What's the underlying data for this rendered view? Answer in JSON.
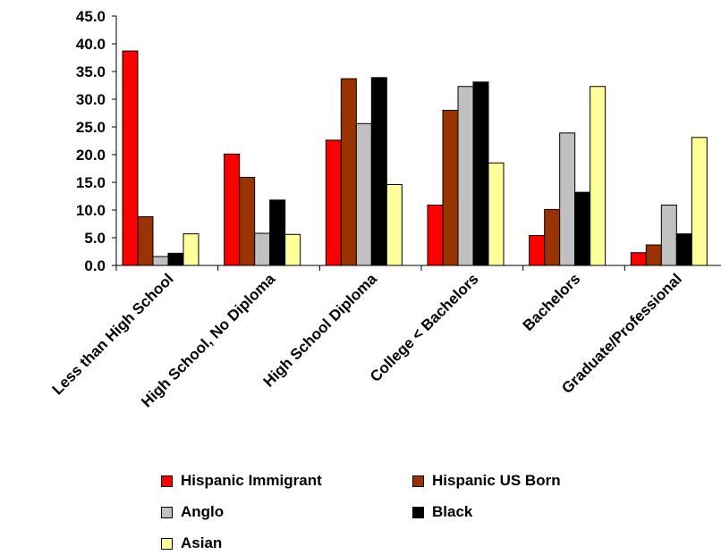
{
  "chart_data": {
    "type": "bar",
    "title": "",
    "xlabel": "",
    "ylabel": "",
    "ylim": [
      0,
      45
    ],
    "yticks": [
      "0.0",
      "5.0",
      "10.0",
      "15.0",
      "20.0",
      "25.0",
      "30.0",
      "35.0",
      "40.0",
      "45.0"
    ],
    "grid": false,
    "legend_position": "bottom",
    "categories": [
      "Less than High School",
      "High School, No Diploma",
      "High School Diploma",
      "College < Bachelors",
      "Bachelors",
      "Graduate/Professional"
    ],
    "series": [
      {
        "name": "Hispanic Immigrant",
        "color": "#ff0000",
        "values": [
          38.7,
          20.1,
          22.6,
          10.9,
          5.4,
          2.3
        ]
      },
      {
        "name": "Hispanic US Born",
        "color": "#993300",
        "values": [
          8.8,
          15.9,
          33.7,
          28.0,
          10.1,
          3.7
        ]
      },
      {
        "name": "Anglo",
        "color": "#c0c0c0",
        "values": [
          1.6,
          5.8,
          25.6,
          32.3,
          23.9,
          10.9
        ]
      },
      {
        "name": "Black",
        "color": "#000000",
        "values": [
          2.2,
          11.8,
          33.9,
          33.1,
          13.2,
          5.7
        ]
      },
      {
        "name": "Asian",
        "color": "#ffff99",
        "values": [
          5.7,
          5.6,
          14.6,
          18.5,
          32.3,
          23.1
        ]
      }
    ]
  }
}
